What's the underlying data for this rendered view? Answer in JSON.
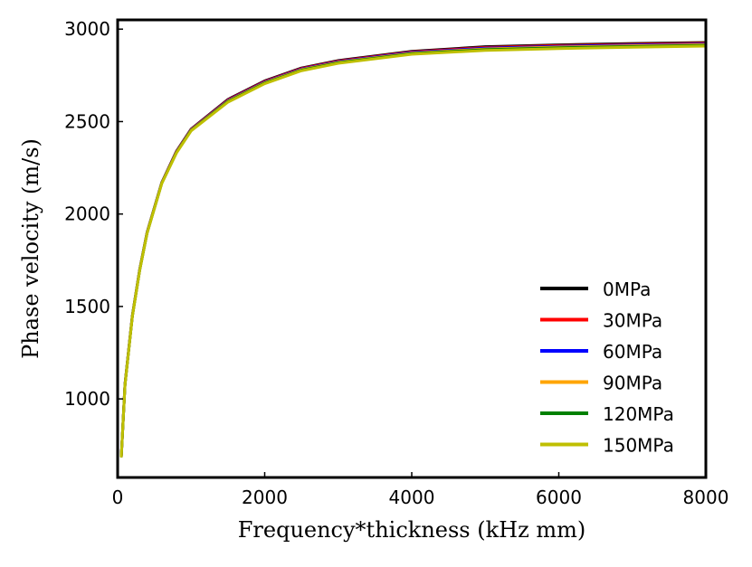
{
  "chart_data": {
    "type": "line",
    "title": "",
    "xlabel": "Frequency*thickness (kHz mm)",
    "ylabel": "Phase velocity (m/s)",
    "xlim": [
      0,
      8000
    ],
    "ylim": [
      575,
      3050
    ],
    "xticks": [
      0,
      2000,
      4000,
      6000,
      8000
    ],
    "yticks": [
      1000,
      1500,
      2000,
      2500,
      3000
    ],
    "grid": false,
    "legend_position": "lower-right",
    "x": [
      50,
      100,
      200,
      300,
      400,
      600,
      800,
      1000,
      1500,
      2000,
      2500,
      3000,
      4000,
      5000,
      6000,
      7000,
      8000
    ],
    "series": [
      {
        "name": "0MPa",
        "color": "#000000",
        "values": [
          690,
          1080,
          1450,
          1700,
          1900,
          2170,
          2340,
          2460,
          2620,
          2720,
          2790,
          2830,
          2880,
          2905,
          2915,
          2922,
          2928
        ]
      },
      {
        "name": "30MPa",
        "color": "#ff0000",
        "values": [
          690,
          1079,
          1449,
          1699,
          1899,
          2169,
          2338,
          2458,
          2617,
          2717,
          2787,
          2827,
          2877,
          2901,
          2911,
          2918,
          2924
        ]
      },
      {
        "name": "60MPa",
        "color": "#0000ff",
        "values": [
          690,
          1078,
          1448,
          1698,
          1898,
          2168,
          2336,
          2456,
          2614,
          2714,
          2784,
          2824,
          2874,
          2897,
          2907,
          2914,
          2920
        ]
      },
      {
        "name": "90MPa",
        "color": "#ffa500",
        "values": [
          690,
          1077,
          1447,
          1697,
          1897,
          2167,
          2334,
          2454,
          2611,
          2711,
          2781,
          2821,
          2870,
          2893,
          2903,
          2910,
          2916
        ]
      },
      {
        "name": "120MPa",
        "color": "#008000",
        "values": [
          690,
          1076,
          1446,
          1696,
          1896,
          2166,
          2332,
          2452,
          2608,
          2708,
          2778,
          2818,
          2867,
          2889,
          2899,
          2906,
          2912
        ]
      },
      {
        "name": "150MPa",
        "color": "#bfbf00",
        "values": [
          690,
          1075,
          1445,
          1695,
          1895,
          2165,
          2330,
          2450,
          2605,
          2705,
          2775,
          2815,
          2864,
          2885,
          2895,
          2902,
          2908
        ]
      }
    ]
  }
}
